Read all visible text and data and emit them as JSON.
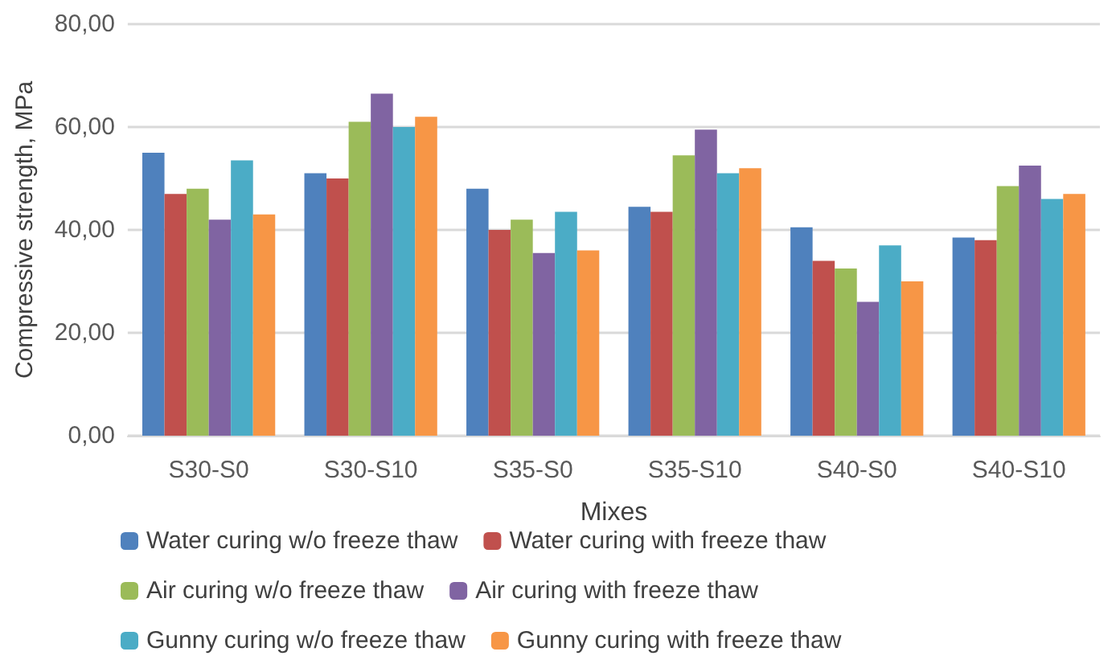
{
  "chart_data": {
    "type": "bar",
    "xlabel": "Mixes",
    "ylabel": "Compressive strength, MPa",
    "categories": [
      "S30-S0",
      "S30-S10",
      "S35-S0",
      "S35-S10",
      "S40-S0",
      "S40-S10"
    ],
    "series": [
      {
        "name": "Water curing w/o freeze thaw",
        "color": "#4f81bd",
        "values": [
          55,
          51,
          48,
          44.5,
          40.5,
          38.5
        ]
      },
      {
        "name": "Water curing with freeze thaw",
        "color": "#c0504d",
        "values": [
          47,
          50,
          40,
          43.5,
          34,
          38
        ]
      },
      {
        "name": "Air curing w/o freeze thaw",
        "color": "#9bbb59",
        "values": [
          48,
          61,
          42,
          54.5,
          32.5,
          48.5
        ]
      },
      {
        "name": "Air curing with freeze thaw",
        "color": "#8064a2",
        "values": [
          42,
          66.5,
          35.5,
          59.5,
          26,
          52.5
        ]
      },
      {
        "name": "Gunny curing w/o freeze thaw",
        "color": "#4bacc6",
        "values": [
          53.5,
          60,
          43.5,
          51,
          37,
          46
        ]
      },
      {
        "name": "Gunny curing with freeze thaw",
        "color": "#f79646",
        "values": [
          43,
          62,
          36,
          52,
          30,
          47
        ]
      }
    ],
    "ylim": [
      0,
      80
    ],
    "yticks": [
      {
        "value": 0,
        "label": "0,00"
      },
      {
        "value": 20,
        "label": "20,00"
      },
      {
        "value": 40,
        "label": "40,00"
      },
      {
        "value": 60,
        "label": "60,00"
      },
      {
        "value": 80,
        "label": "80,00"
      }
    ],
    "grid": "y",
    "legend": "bottom"
  }
}
